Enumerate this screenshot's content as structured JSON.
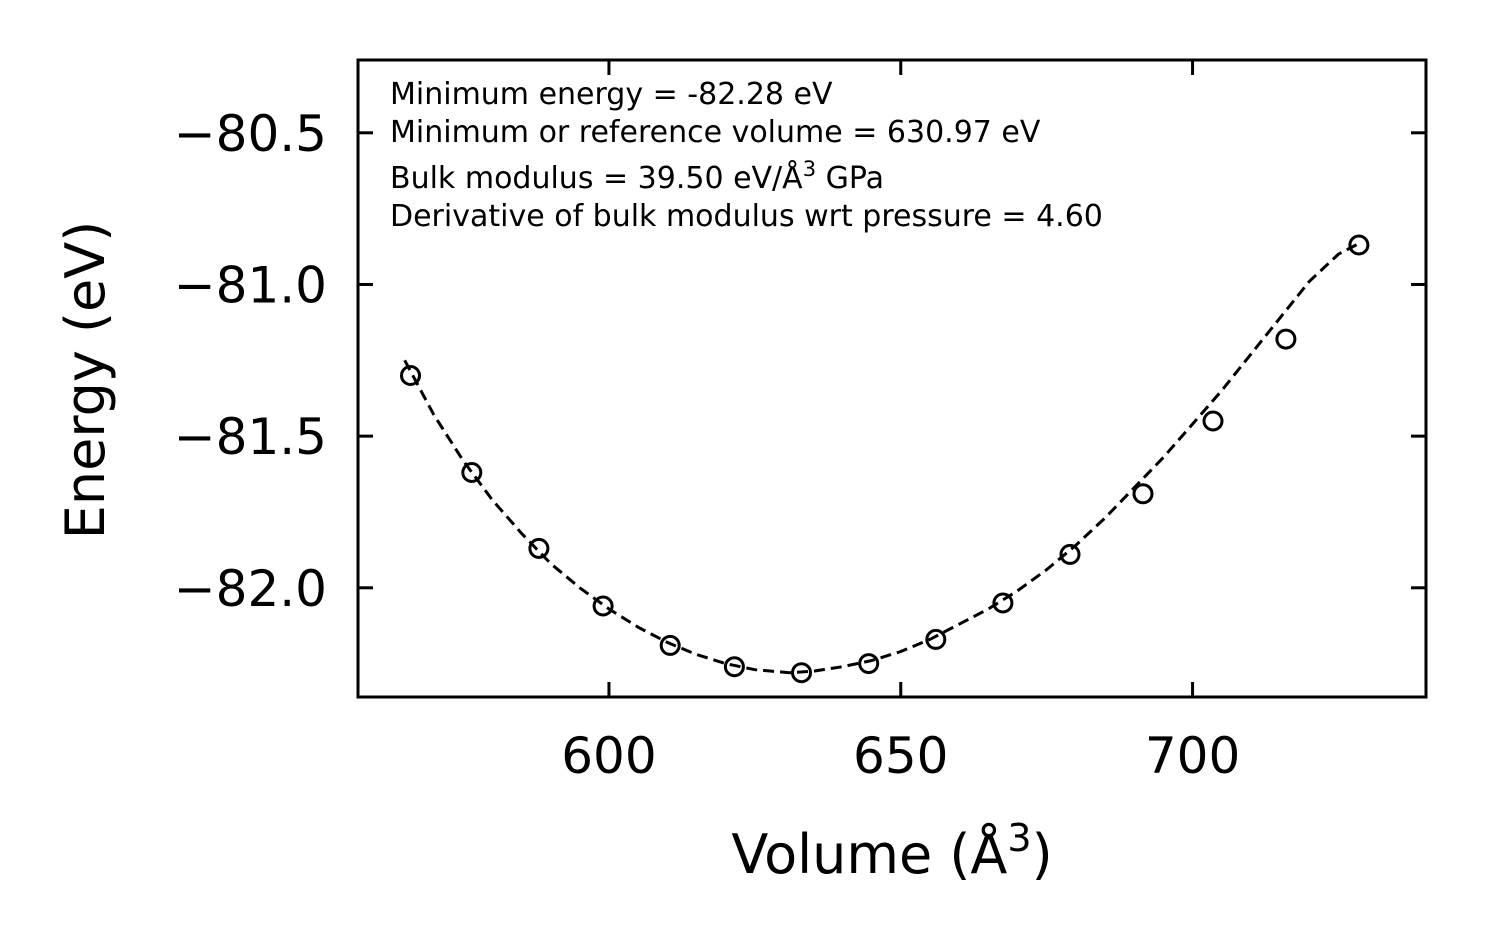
{
  "chart_data": {
    "type": "scatter",
    "title": "",
    "xlabel": "Volume (Å",
    "xlabel_sup": "3",
    "xlabel_tail": ")",
    "ylabel": "Energy (eV)",
    "xlim": [
      557,
      740
    ],
    "ylim": [
      -82.36,
      -80.26
    ],
    "xticks": [
      600,
      650,
      700
    ],
    "yticks": [
      -80.5,
      -81.0,
      -81.5,
      -82.0
    ],
    "xtick_labels": [
      "600",
      "650",
      "700"
    ],
    "ytick_labels": [
      "−80.5",
      "−81.0",
      "−81.5",
      "−82.0"
    ],
    "grid": false,
    "series": [
      {
        "name": "data",
        "marker": "open-circle",
        "x": [
          566.0,
          576.5,
          588.0,
          599.0,
          610.5,
          621.5,
          633.0,
          644.5,
          656.0,
          667.5,
          679.0,
          691.5,
          703.5,
          716.0,
          728.5
        ],
        "y": [
          -81.3,
          -81.62,
          -81.87,
          -82.06,
          -82.19,
          -82.26,
          -82.28,
          -82.25,
          -82.17,
          -82.05,
          -81.89,
          -81.69,
          -81.45,
          -81.18,
          -80.87
        ]
      },
      {
        "name": "fit",
        "line": "dashed",
        "x": [
          565.0,
          570,
          575,
          580,
          585,
          590,
          595,
          600,
          605,
          610,
          615,
          620,
          625,
          630.97,
          635,
          640,
          645,
          650,
          655,
          660,
          665,
          670,
          675,
          680,
          685,
          690,
          695,
          700,
          705,
          710,
          715,
          720,
          725,
          729.0
        ],
        "y": [
          -81.25,
          -81.43,
          -81.58,
          -81.71,
          -81.82,
          -81.92,
          -82.0,
          -82.07,
          -82.13,
          -82.18,
          -82.22,
          -82.25,
          -82.27,
          -82.28,
          -82.275,
          -82.26,
          -82.24,
          -82.21,
          -82.17,
          -82.12,
          -82.07,
          -82.01,
          -81.94,
          -81.86,
          -81.77,
          -81.67,
          -81.57,
          -81.46,
          -81.35,
          -81.23,
          -81.11,
          -80.99,
          -80.9,
          -80.86
        ]
      }
    ],
    "annotations": [
      "Minimum energy = -82.28 eV",
      "Minimum or reference volume = 630.97 eV",
      "Bulk modulus = 39.50 eV/Å",
      "3",
      " GPa",
      "Derivative of bulk modulus wrt pressure = 4.60"
    ],
    "colors": {
      "line": "#000000",
      "marker": "#000000",
      "background": "#ffffff"
    }
  }
}
